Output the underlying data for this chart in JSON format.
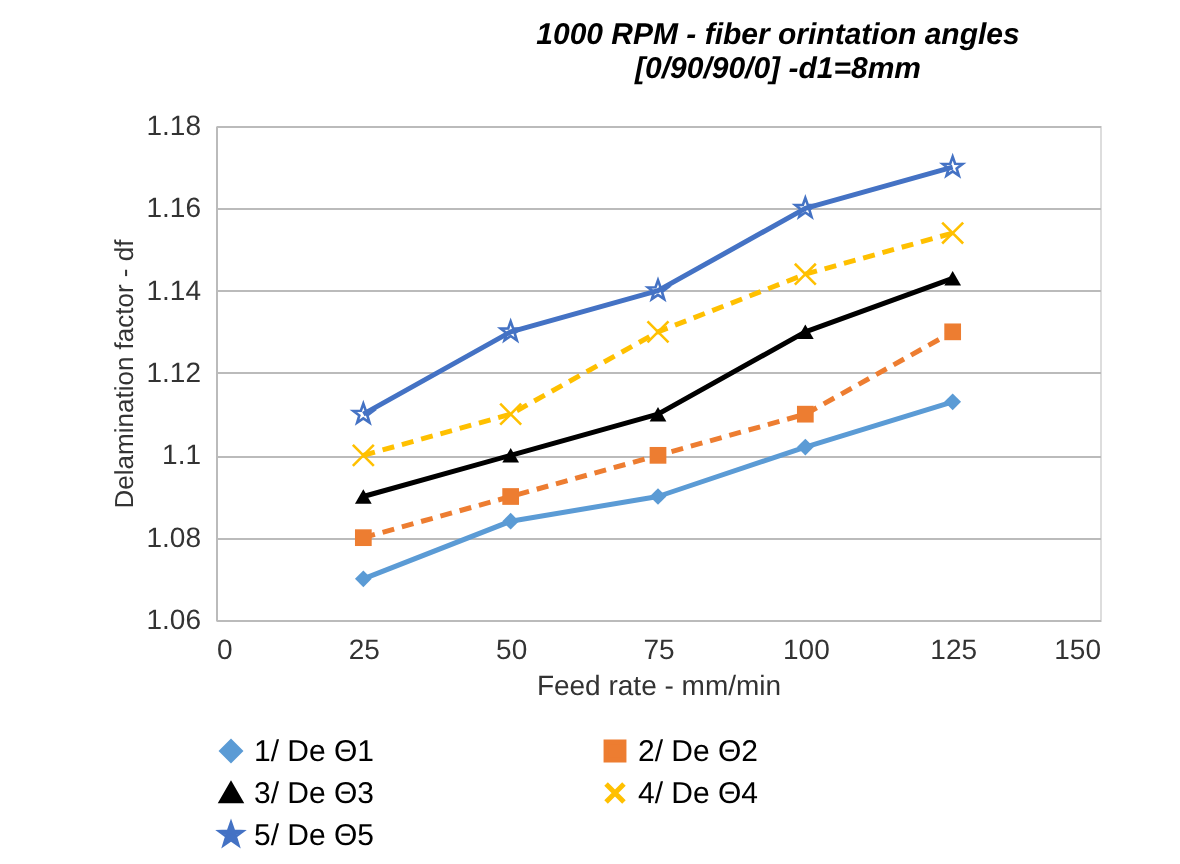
{
  "chart_data": {
    "type": "line",
    "title": [
      "1000 RPM - fiber orintation angles",
      "[0/90/90/0] -d1=8mm"
    ],
    "xlabel": "Feed rate - mm/min",
    "ylabel": "Delamination factor - df",
    "x": [
      25,
      50,
      75,
      100,
      125
    ],
    "xlim": [
      0,
      150
    ],
    "xticks": [
      0,
      25,
      50,
      75,
      100,
      125,
      150
    ],
    "ylim": [
      1.06,
      1.18
    ],
    "yticks": [
      1.06,
      1.08,
      {
        "value": 1.1,
        "label": "1.1"
      },
      1.12,
      1.14,
      1.16,
      1.18
    ],
    "grid": "y",
    "legend": "bottom",
    "series": [
      {
        "name": "1/ De Θ1",
        "color": "#5b9bd5",
        "marker": "diamond",
        "line_style": "solid",
        "values": [
          1.07,
          1.084,
          1.09,
          1.102,
          1.113
        ]
      },
      {
        "name": "2/ De Θ2",
        "color": "#ed7d31",
        "marker": "square",
        "line_style": "dashed",
        "values": [
          1.08,
          1.09,
          1.1,
          1.11,
          1.13
        ]
      },
      {
        "name": "3/ De Θ3",
        "color": "#000000",
        "marker": "triangle",
        "line_style": "solid",
        "values": [
          1.09,
          1.1,
          1.11,
          1.13,
          1.143
        ]
      },
      {
        "name": "4/ De Θ4",
        "color": "#ffc000",
        "marker": "cross",
        "line_style": "dashed",
        "values": [
          1.1,
          1.11,
          1.13,
          1.144,
          1.154
        ]
      },
      {
        "name": "5/ De Θ5",
        "color": "#4472c4",
        "marker": "star",
        "line_style": "solid",
        "values": [
          1.11,
          1.13,
          1.14,
          1.16,
          1.17
        ]
      }
    ]
  }
}
